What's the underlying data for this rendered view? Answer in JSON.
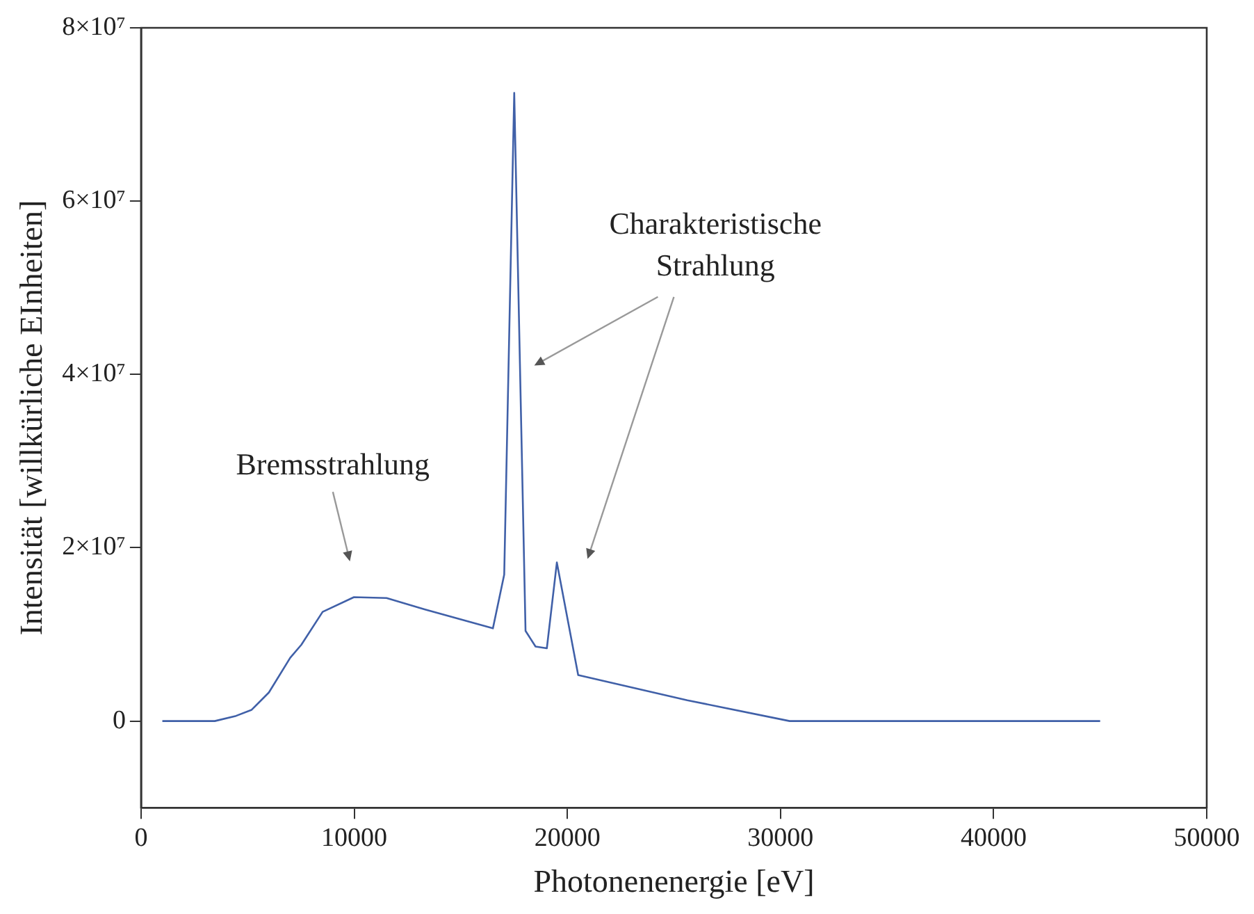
{
  "chart_data": {
    "type": "line",
    "xlabel": "Photonenenergie [eV]",
    "ylabel": "Intensität [willkürliche EInheiten]",
    "x": [
      1000,
      3460,
      4460,
      5190,
      6000,
      7000,
      7520,
      8520,
      9990,
      11520,
      13300,
      16510,
      17040,
      17510,
      18040,
      18510,
      19040,
      19510,
      20510,
      25630,
      30430,
      45000
    ],
    "series": [
      {
        "color": "#4060a8",
        "values": [
          0,
          0,
          600000,
          1300000,
          3300000,
          7300000,
          8800000,
          12600000,
          14300000,
          14200000,
          12900000,
          10700000,
          16900000,
          72500000,
          10400000,
          8600000,
          8400000,
          18300000,
          5300000,
          2400000,
          0,
          0
        ]
      }
    ],
    "xlim": [
      0,
      50000
    ],
    "xticks": [
      0,
      10000,
      20000,
      30000,
      40000,
      50000
    ],
    "ylim": [
      -10000000,
      80000000
    ],
    "yticks": [
      {
        "value": 0,
        "label": "0"
      },
      {
        "value": 20000000,
        "label": "2×10⁷"
      },
      {
        "value": 40000000,
        "label": "4×10⁷"
      },
      {
        "value": 60000000,
        "label": "6×10⁷"
      },
      {
        "value": 80000000,
        "label": "8×10⁷"
      }
    ],
    "grid": false,
    "legend": false,
    "marker": "none",
    "line_style": "solid",
    "annotations": [
      "Bremsstrahlung",
      "Charakteristische\nStrahlung"
    ]
  }
}
